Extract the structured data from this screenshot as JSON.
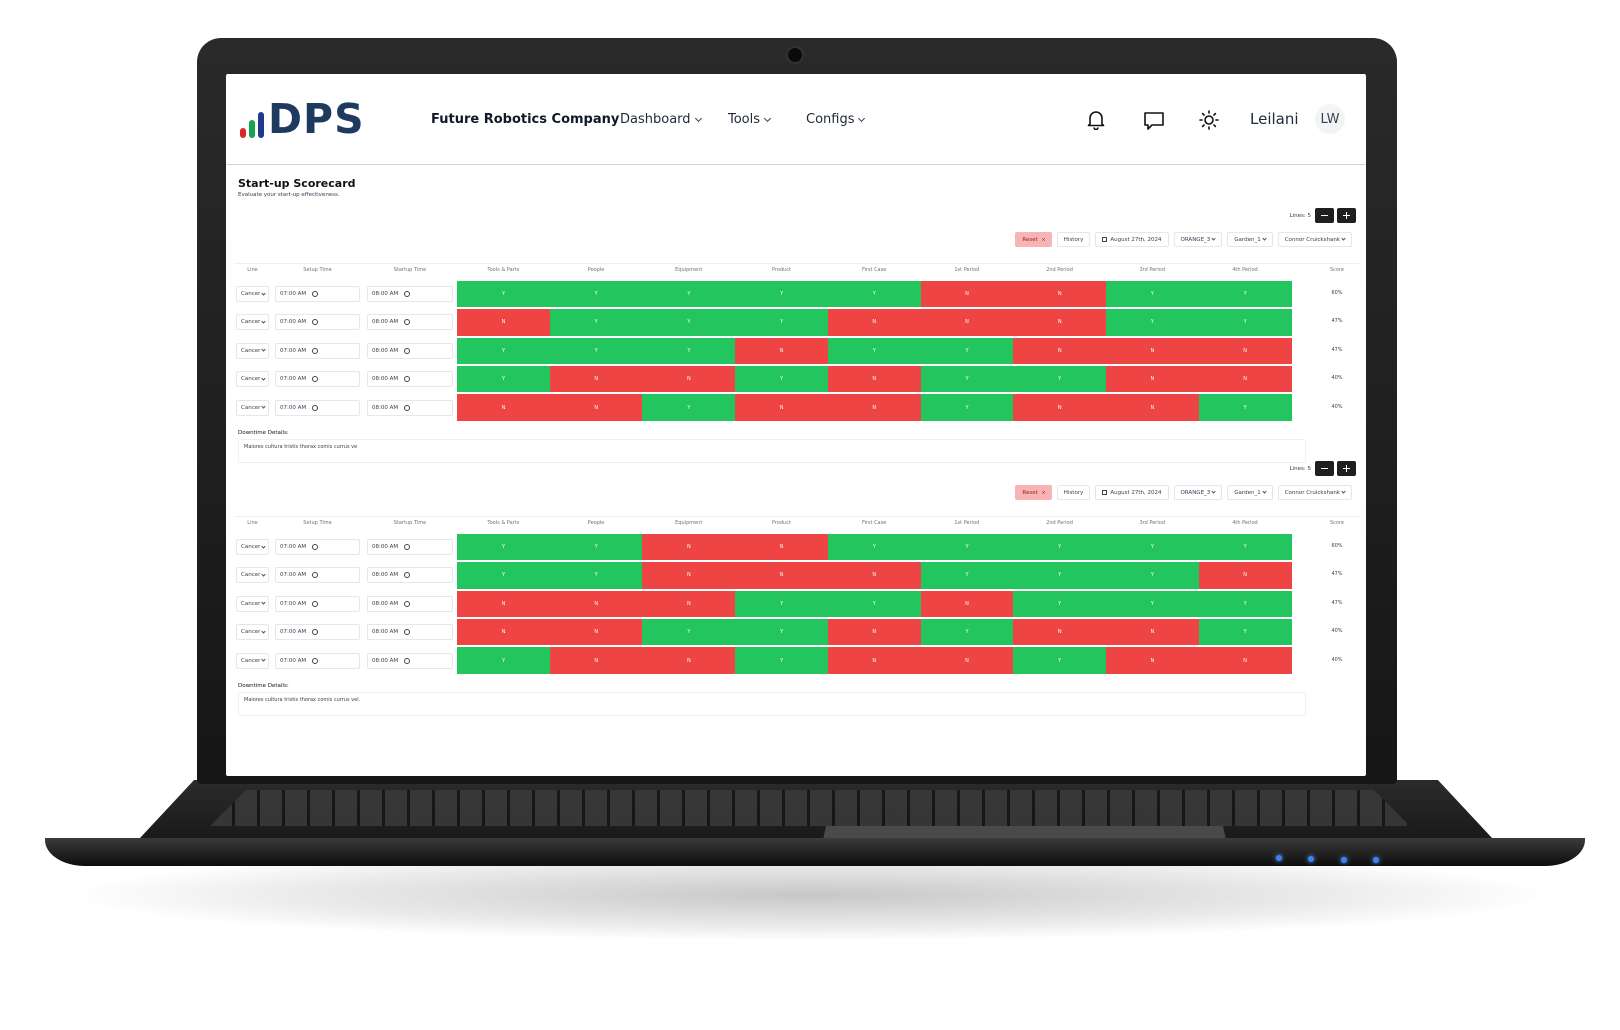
{
  "header": {
    "logo": "DPS",
    "company": "Future Robotics Company",
    "nav": [
      "Dashboard",
      "Tools",
      "Configs"
    ],
    "user": "Leilani",
    "initials": "LW"
  },
  "page": {
    "title": "Start-up Scorecard",
    "subtitle": "Evaluate your start-up effectiveness."
  },
  "cell_colors": {
    "Y": "#22c55e",
    "N": "#ef4444"
  },
  "scorecards": [
    {
      "lines_label": "Lines: 5",
      "filters": [
        "Reset",
        "History",
        "August 27th, 2024",
        "ORANGE_3",
        "Garden_1",
        "Connor Cruickshank"
      ],
      "columns": [
        "Line",
        "Setup Time",
        "Startup Time",
        "Tools & Parts",
        "People",
        "Equipment",
        "Product",
        "First Case",
        "1st Period",
        "2nd Period",
        "3rd Period",
        "4th Period",
        "Score"
      ],
      "rows": [
        {
          "line": "Cancer",
          "setup": "07:00 AM",
          "startup": "08:00 AM",
          "cells": [
            "Y",
            "Y",
            "Y",
            "Y",
            "Y",
            "N",
            "N",
            "Y",
            "Y"
          ],
          "score": "60%"
        },
        {
          "line": "Cancer",
          "setup": "07:00 AM",
          "startup": "08:00 AM",
          "cells": [
            "N",
            "Y",
            "Y",
            "Y",
            "N",
            "N",
            "N",
            "Y",
            "Y"
          ],
          "score": "47%"
        },
        {
          "line": "Cancer",
          "setup": "07:00 AM",
          "startup": "08:00 AM",
          "cells": [
            "Y",
            "Y",
            "Y",
            "N",
            "Y",
            "Y",
            "N",
            "N",
            "N"
          ],
          "score": "47%"
        },
        {
          "line": "Cancer",
          "setup": "07:00 AM",
          "startup": "08:00 AM",
          "cells": [
            "Y",
            "N",
            "N",
            "Y",
            "N",
            "Y",
            "Y",
            "N",
            "N"
          ],
          "score": "40%"
        },
        {
          "line": "Cancer",
          "setup": "07:00 AM",
          "startup": "08:00 AM",
          "cells": [
            "N",
            "N",
            "Y",
            "N",
            "N",
            "Y",
            "N",
            "N",
            "Y"
          ],
          "score": "40%"
        }
      ],
      "downtime_label": "Downtime Details:",
      "downtime_text": "Maiores cultura tristis thorax comis currus ve"
    },
    {
      "lines_label": "Lines: 5",
      "filters": [
        "Reset",
        "History",
        "August 27th, 2024",
        "ORANGE_3",
        "Garden_1",
        "Connor Cruickshank"
      ],
      "columns": [
        "Line",
        "Setup Time",
        "Startup Time",
        "Tools & Parts",
        "People",
        "Equipment",
        "Product",
        "First Case",
        "1st Period",
        "2nd Period",
        "3rd Period",
        "4th Period",
        "Score"
      ],
      "rows": [
        {
          "line": "Cancer",
          "setup": "07:00 AM",
          "startup": "08:00 AM",
          "cells": [
            "Y",
            "Y",
            "N",
            "N",
            "Y",
            "Y",
            "Y",
            "Y",
            "Y"
          ],
          "score": "60%"
        },
        {
          "line": "Cancer",
          "setup": "07:00 AM",
          "startup": "08:00 AM",
          "cells": [
            "Y",
            "Y",
            "N",
            "N",
            "N",
            "Y",
            "Y",
            "Y",
            "N"
          ],
          "score": "47%"
        },
        {
          "line": "Cancer",
          "setup": "07:00 AM",
          "startup": "08:00 AM",
          "cells": [
            "N",
            "N",
            "N",
            "Y",
            "Y",
            "N",
            "Y",
            "Y",
            "Y"
          ],
          "score": "47%"
        },
        {
          "line": "Cancer",
          "setup": "07:00 AM",
          "startup": "08:00 AM",
          "cells": [
            "N",
            "N",
            "Y",
            "Y",
            "N",
            "Y",
            "N",
            "N",
            "Y"
          ],
          "score": "40%"
        },
        {
          "line": "Cancer",
          "setup": "07:00 AM",
          "startup": "08:00 AM",
          "cells": [
            "Y",
            "N",
            "N",
            "Y",
            "N",
            "N",
            "Y",
            "N",
            "N"
          ],
          "score": "40%"
        }
      ],
      "downtime_label": "Downtime Details:",
      "downtime_text": "Maiores cultura tristis thorax comis currus vel."
    }
  ]
}
